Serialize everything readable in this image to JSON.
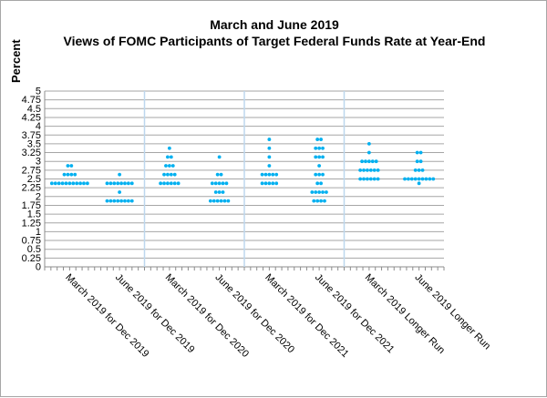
{
  "title": "March and June 2019",
  "subtitle": "Views of FOMC Participants of Target Federal Funds Rate at Year-End",
  "ylabel": "Percent",
  "chart_data": {
    "type": "scatter",
    "title": "March and June 2019",
    "subtitle": "Views of FOMC Participants of Target Federal Funds Rate at Year-End",
    "ylabel": "Percent",
    "xlabel": "",
    "ylim": [
      0,
      5
    ],
    "ytick_step": 0.25,
    "grid": "horizontal",
    "marker_color": "#00b0f0",
    "gridline_color": "#a6a6a6",
    "separator_color": "#bdd7ee",
    "categories": [
      {
        "label": "March 2019 for Dec 2019",
        "dots": [
          {
            "y": 2.375,
            "n": 11
          },
          {
            "y": 2.625,
            "n": 4
          },
          {
            "y": 2.875,
            "n": 2
          }
        ]
      },
      {
        "label": "June 2019 for Dec 2019",
        "dots": [
          {
            "y": 1.875,
            "n": 8
          },
          {
            "y": 2.125,
            "n": 1
          },
          {
            "y": 2.375,
            "n": 8
          },
          {
            "y": 2.625,
            "n": 1
          }
        ]
      },
      {
        "label": "March 2019 for Dec 2020",
        "dots": [
          {
            "y": 2.375,
            "n": 6
          },
          {
            "y": 2.625,
            "n": 4
          },
          {
            "y": 2.875,
            "n": 3
          },
          {
            "y": 3.125,
            "n": 2
          },
          {
            "y": 3.375,
            "n": 1
          }
        ]
      },
      {
        "label": "June 2019 for Dec 2020",
        "dots": [
          {
            "y": 1.875,
            "n": 6
          },
          {
            "y": 2.125,
            "n": 3
          },
          {
            "y": 2.375,
            "n": 5
          },
          {
            "y": 2.625,
            "n": 2
          },
          {
            "y": 3.125,
            "n": 1
          }
        ]
      },
      {
        "label": "March 2019 for Dec 2021",
        "dots": [
          {
            "y": 2.375,
            "n": 5
          },
          {
            "y": 2.625,
            "n": 5
          },
          {
            "y": 2.875,
            "n": 1
          },
          {
            "y": 3.125,
            "n": 1
          },
          {
            "y": 3.375,
            "n": 1
          },
          {
            "y": 3.625,
            "n": 1
          }
        ]
      },
      {
        "label": "June 2019 for Dec 2021",
        "dots": [
          {
            "y": 1.875,
            "n": 4
          },
          {
            "y": 2.125,
            "n": 5
          },
          {
            "y": 2.375,
            "n": 2
          },
          {
            "y": 2.625,
            "n": 3
          },
          {
            "y": 2.875,
            "n": 1
          },
          {
            "y": 3.125,
            "n": 3
          },
          {
            "y": 3.375,
            "n": 3
          },
          {
            "y": 3.625,
            "n": 2
          }
        ]
      },
      {
        "label": "March 2019 Longer Run",
        "dots": [
          {
            "y": 2.5,
            "n": 6
          },
          {
            "y": 2.75,
            "n": 6
          },
          {
            "y": 3.0,
            "n": 5
          },
          {
            "y": 3.25,
            "n": 1
          },
          {
            "y": 3.5,
            "n": 1
          }
        ]
      },
      {
        "label": "June 2019 Longer Run",
        "dots": [
          {
            "y": 2.375,
            "n": 1
          },
          {
            "y": 2.5,
            "n": 9
          },
          {
            "y": 2.75,
            "n": 3
          },
          {
            "y": 3.0,
            "n": 2
          },
          {
            "y": 3.25,
            "n": 2
          }
        ]
      }
    ]
  }
}
